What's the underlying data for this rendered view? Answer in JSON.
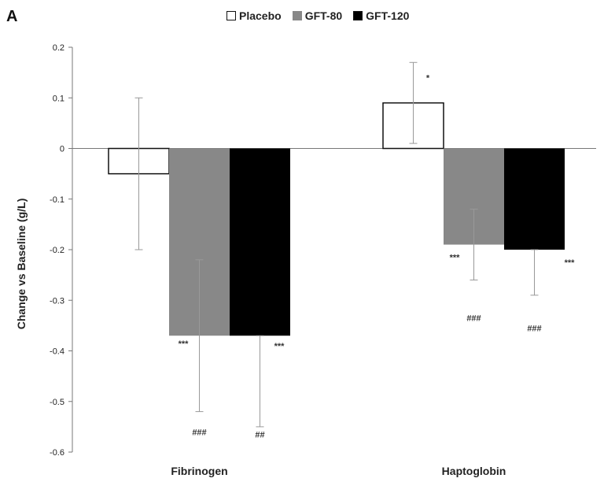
{
  "chart_data": {
    "type": "bar",
    "panel_label": "A",
    "title": "",
    "xlabel": "",
    "ylabel": "Change vs Baseline (g/L)",
    "ylim": [
      -0.6,
      0.2
    ],
    "yticks": [
      "0.2",
      "0.1",
      "0",
      "-0.1",
      "-0.2",
      "-0.3",
      "-0.4",
      "-0.5",
      "-0.6"
    ],
    "ytick_values": [
      0.2,
      0.1,
      0,
      -0.1,
      -0.2,
      -0.3,
      -0.4,
      -0.5,
      -0.6
    ],
    "categories": [
      "Fibrinogen",
      "Haptoglobin"
    ],
    "legend_position": "top",
    "grid": false,
    "series": [
      {
        "name": "Placebo",
        "color": "#ffffff",
        "values": [
          -0.05,
          0.09
        ],
        "err_low": [
          -0.2,
          0.01
        ],
        "err_high": [
          0.1,
          0.17
        ],
        "annotations": [
          [],
          [
            {
              "text": "*",
              "at": 0.14
            }
          ]
        ]
      },
      {
        "name": "GFT-80",
        "color": "#888888",
        "values": [
          -0.37,
          -0.19
        ],
        "err_low": [
          -0.52,
          -0.26
        ],
        "err_high": [
          -0.22,
          -0.12
        ],
        "annotations": [
          [
            {
              "text": "***",
              "at": -0.385
            },
            {
              "text": "###",
              "at": -0.56
            }
          ],
          [
            {
              "text": "***",
              "at": -0.215
            },
            {
              "text": "###",
              "at": -0.335
            }
          ]
        ]
      },
      {
        "name": "GFT-120",
        "color": "#000000",
        "values": [
          -0.37,
          -0.2
        ],
        "err_low": [
          -0.55,
          -0.29
        ],
        "err_high": [
          -0.37,
          -0.2
        ],
        "annotations": [
          [
            {
              "text": "***",
              "at": -0.39
            },
            {
              "text": "##",
              "at": -0.565
            }
          ],
          [
            {
              "text": "***",
              "at": -0.225
            },
            {
              "text": "###",
              "at": -0.355
            }
          ]
        ]
      }
    ]
  }
}
